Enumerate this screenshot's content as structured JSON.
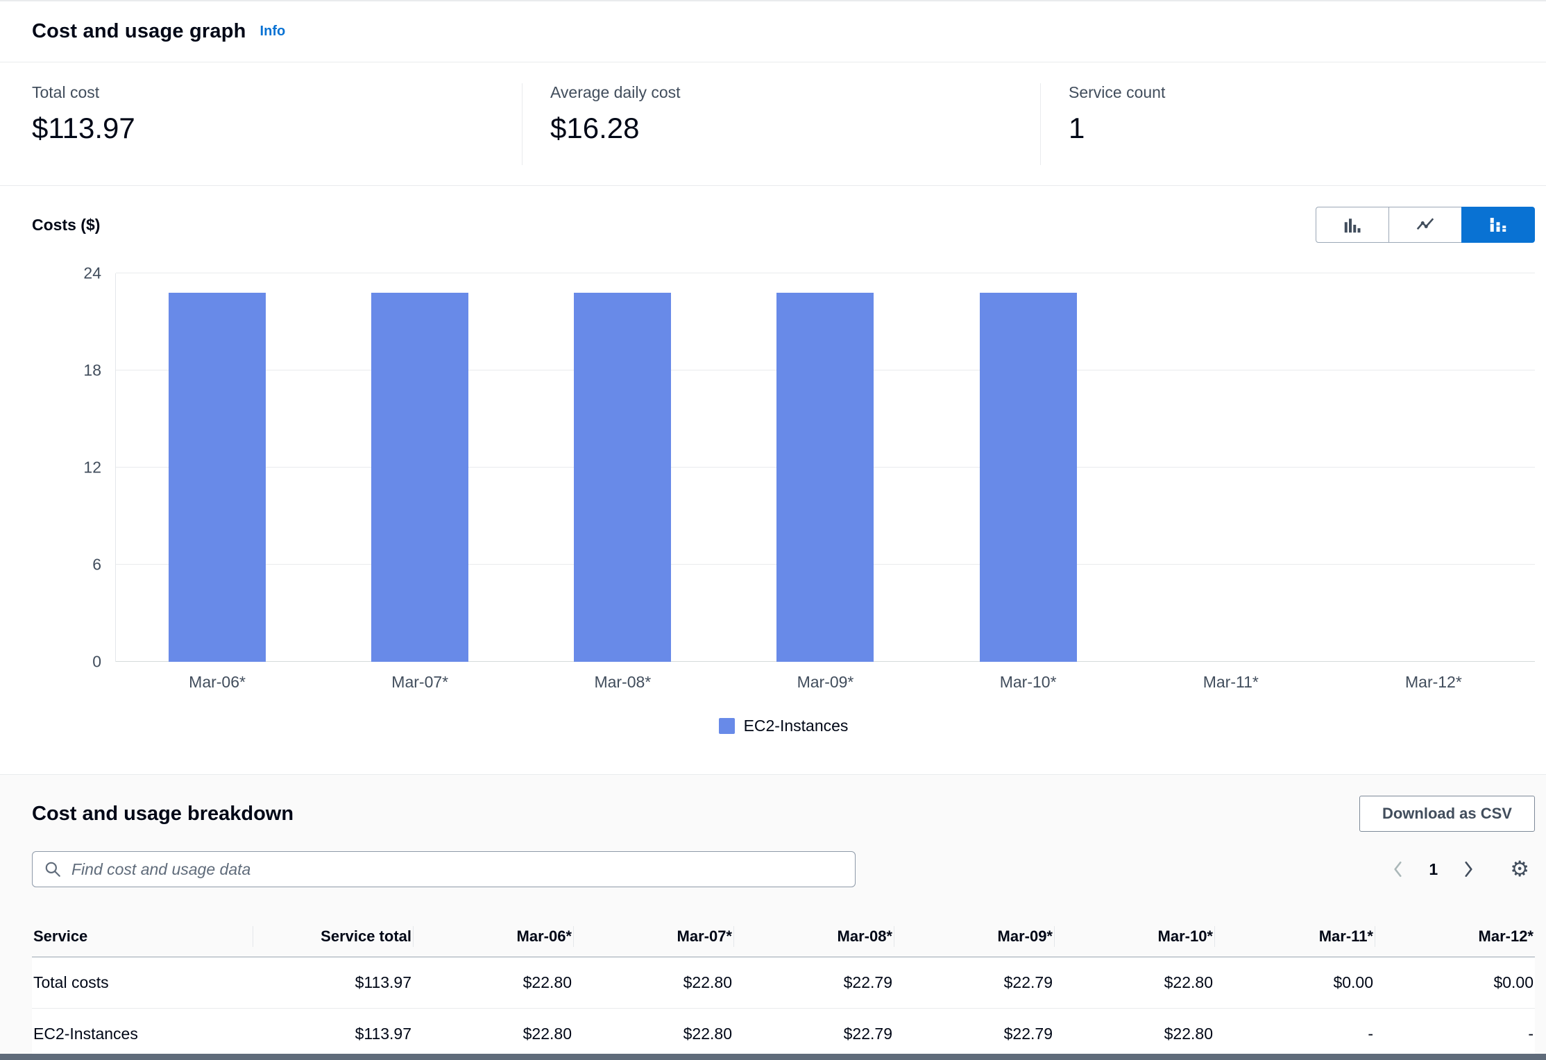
{
  "header": {
    "title": "Cost and usage graph",
    "info_link": "Info"
  },
  "stats": [
    {
      "label": "Total cost",
      "value": "$113.97"
    },
    {
      "label": "Average daily cost",
      "value": "$16.28"
    },
    {
      "label": "Service count",
      "value": "1"
    }
  ],
  "chart": {
    "axis_title": "Costs ($)"
  },
  "chart_data": {
    "type": "bar",
    "title": "Cost and usage graph",
    "ylabel": "Costs ($)",
    "xlabel": "",
    "categories": [
      "Mar-06*",
      "Mar-07*",
      "Mar-08*",
      "Mar-09*",
      "Mar-10*",
      "Mar-11*",
      "Mar-12*"
    ],
    "series": [
      {
        "name": "EC2-Instances",
        "color": "#688AE8",
        "values": [
          22.8,
          22.8,
          22.79,
          22.79,
          22.8,
          0,
          0
        ]
      }
    ],
    "ylim": [
      0,
      24
    ],
    "yticks": [
      0,
      6,
      12,
      18,
      24
    ],
    "grid": true,
    "legend_position": "bottom"
  },
  "chart_toolbar": {
    "types": [
      "bar-chart",
      "line-chart",
      "stacked-bar-chart"
    ],
    "selected": "stacked-bar-chart"
  },
  "breakdown": {
    "title": "Cost and usage breakdown",
    "download_button": "Download as CSV",
    "search_placeholder": "Find cost and usage data",
    "pagination": {
      "current_page": "1"
    }
  },
  "table": {
    "columns": [
      "Service",
      "Service total",
      "Mar-06*",
      "Mar-07*",
      "Mar-08*",
      "Mar-09*",
      "Mar-10*",
      "Mar-11*",
      "Mar-12*"
    ],
    "rows": [
      {
        "cells": [
          "Total costs",
          "$113.97",
          "$22.80",
          "$22.80",
          "$22.79",
          "$22.79",
          "$22.80",
          "$0.00",
          "$0.00"
        ]
      },
      {
        "cells": [
          "EC2-Instances",
          "$113.97",
          "$22.80",
          "$22.80",
          "$22.79",
          "$22.79",
          "$22.80",
          "-",
          "-"
        ]
      }
    ]
  },
  "icons": {
    "search": "magnifier",
    "previous": "chevron-left",
    "next": "chevron-right",
    "settings": "gear",
    "gear_glyph": "⚙︎"
  },
  "colors": {
    "accent": "#0972d3",
    "bar_fill": "#688AE8",
    "link": "#0972d3"
  }
}
